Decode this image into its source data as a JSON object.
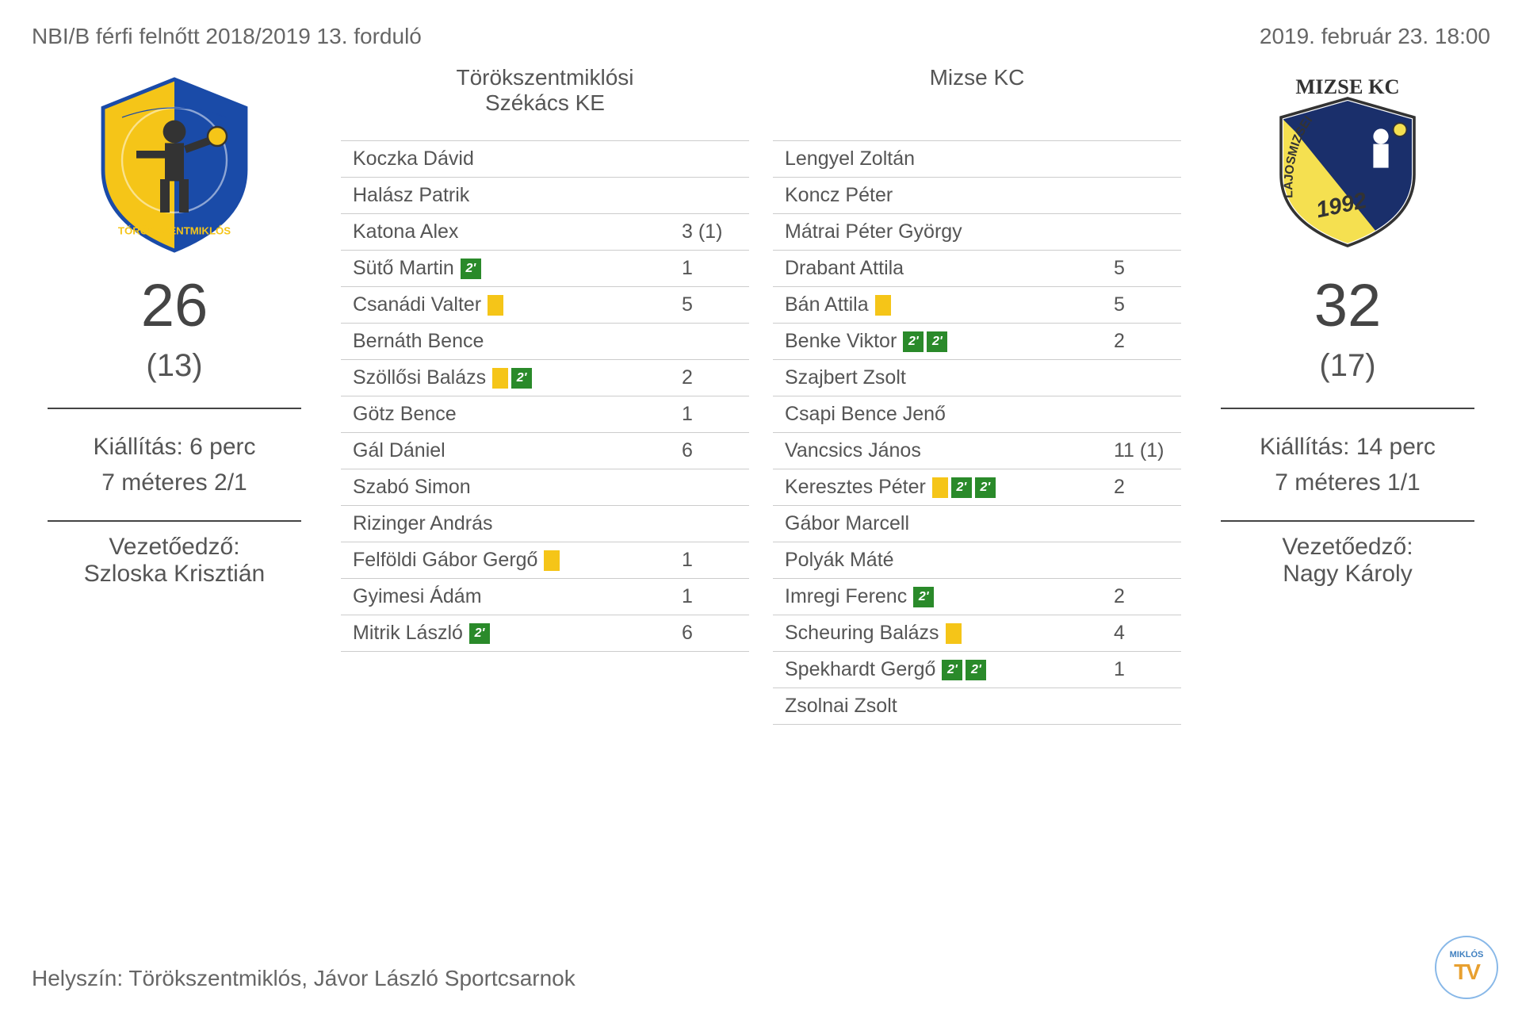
{
  "header": {
    "league": "NBI/B férfi felnőtt 2018/2019  13. forduló",
    "datetime": "2019. február 23. 18:00"
  },
  "home": {
    "name": "Törökszentmiklósi\nSzékács KE",
    "score": "26",
    "halftime": "(13)",
    "suspension": "Kiállítás: 6 perc",
    "sevens": "7 méteres 2/1",
    "coach_label": "Vezetőedző:",
    "coach_name": "Szloska Krisztián",
    "logo_colors": {
      "blue": "#1a4ba8",
      "yellow": "#f5c518"
    },
    "players": [
      {
        "name": "Koczka Dávid",
        "yellow": false,
        "susp": 0,
        "goals": ""
      },
      {
        "name": "Halász Patrik",
        "yellow": false,
        "susp": 0,
        "goals": ""
      },
      {
        "name": "Katona Alex",
        "yellow": false,
        "susp": 0,
        "goals": "3 (1)"
      },
      {
        "name": "Sütő Martin",
        "yellow": false,
        "susp": 1,
        "goals": "1"
      },
      {
        "name": "Csanádi Valter",
        "yellow": true,
        "susp": 0,
        "goals": "5"
      },
      {
        "name": "Bernáth Bence",
        "yellow": false,
        "susp": 0,
        "goals": ""
      },
      {
        "name": "Szöllősi Balázs",
        "yellow": true,
        "susp": 1,
        "goals": "2"
      },
      {
        "name": "Götz Bence",
        "yellow": false,
        "susp": 0,
        "goals": "1"
      },
      {
        "name": "Gál Dániel",
        "yellow": false,
        "susp": 0,
        "goals": "6"
      },
      {
        "name": "Szabó Simon",
        "yellow": false,
        "susp": 0,
        "goals": ""
      },
      {
        "name": "Rizinger András",
        "yellow": false,
        "susp": 0,
        "goals": ""
      },
      {
        "name": "Felföldi Gábor Gergő",
        "yellow": true,
        "susp": 0,
        "goals": "1"
      },
      {
        "name": "Gyimesi Ádám",
        "yellow": false,
        "susp": 0,
        "goals": "1"
      },
      {
        "name": "Mitrik László",
        "yellow": false,
        "susp": 1,
        "goals": "6"
      }
    ]
  },
  "away": {
    "name": "Mizse KC",
    "score": "32",
    "halftime": "(17)",
    "suspension": "Kiállítás: 14 perc",
    "sevens": "7 méteres 1/1",
    "coach_label": "Vezetőedző:",
    "coach_name": "Nagy Károly",
    "logo_colors": {
      "navy": "#1a2f6b",
      "yellow": "#f5e050"
    },
    "players": [
      {
        "name": "Lengyel Zoltán",
        "yellow": false,
        "susp": 0,
        "goals": ""
      },
      {
        "name": "Koncz Péter",
        "yellow": false,
        "susp": 0,
        "goals": ""
      },
      {
        "name": "Mátrai Péter György",
        "yellow": false,
        "susp": 0,
        "goals": ""
      },
      {
        "name": "Drabant Attila",
        "yellow": false,
        "susp": 0,
        "goals": "5"
      },
      {
        "name": "Bán Attila",
        "yellow": true,
        "susp": 0,
        "goals": "5"
      },
      {
        "name": "Benke Viktor",
        "yellow": false,
        "susp": 2,
        "goals": "2"
      },
      {
        "name": "Szajbert Zsolt",
        "yellow": false,
        "susp": 0,
        "goals": ""
      },
      {
        "name": "Csapi Bence Jenő",
        "yellow": false,
        "susp": 0,
        "goals": ""
      },
      {
        "name": "Vancsics János",
        "yellow": false,
        "susp": 0,
        "goals": "11 (1)"
      },
      {
        "name": "Keresztes Péter",
        "yellow": true,
        "susp": 2,
        "goals": "2"
      },
      {
        "name": "Gábor Marcell",
        "yellow": false,
        "susp": 0,
        "goals": ""
      },
      {
        "name": "Polyák Máté",
        "yellow": false,
        "susp": 0,
        "goals": ""
      },
      {
        "name": "Imregi Ferenc",
        "yellow": false,
        "susp": 1,
        "goals": "2"
      },
      {
        "name": "Scheuring Balázs",
        "yellow": true,
        "susp": 0,
        "goals": "4"
      },
      {
        "name": "Spekhardt Gergő",
        "yellow": false,
        "susp": 2,
        "goals": "1"
      },
      {
        "name": "Zsolnai Zsolt",
        "yellow": false,
        "susp": 0,
        "goals": ""
      }
    ]
  },
  "venue": "Helyszín: Törökszentmiklós, Jávor László Sportcsarnok",
  "watermark": {
    "top": "MIKLÓS",
    "bottom": "TV"
  },
  "susp_label": "2'"
}
